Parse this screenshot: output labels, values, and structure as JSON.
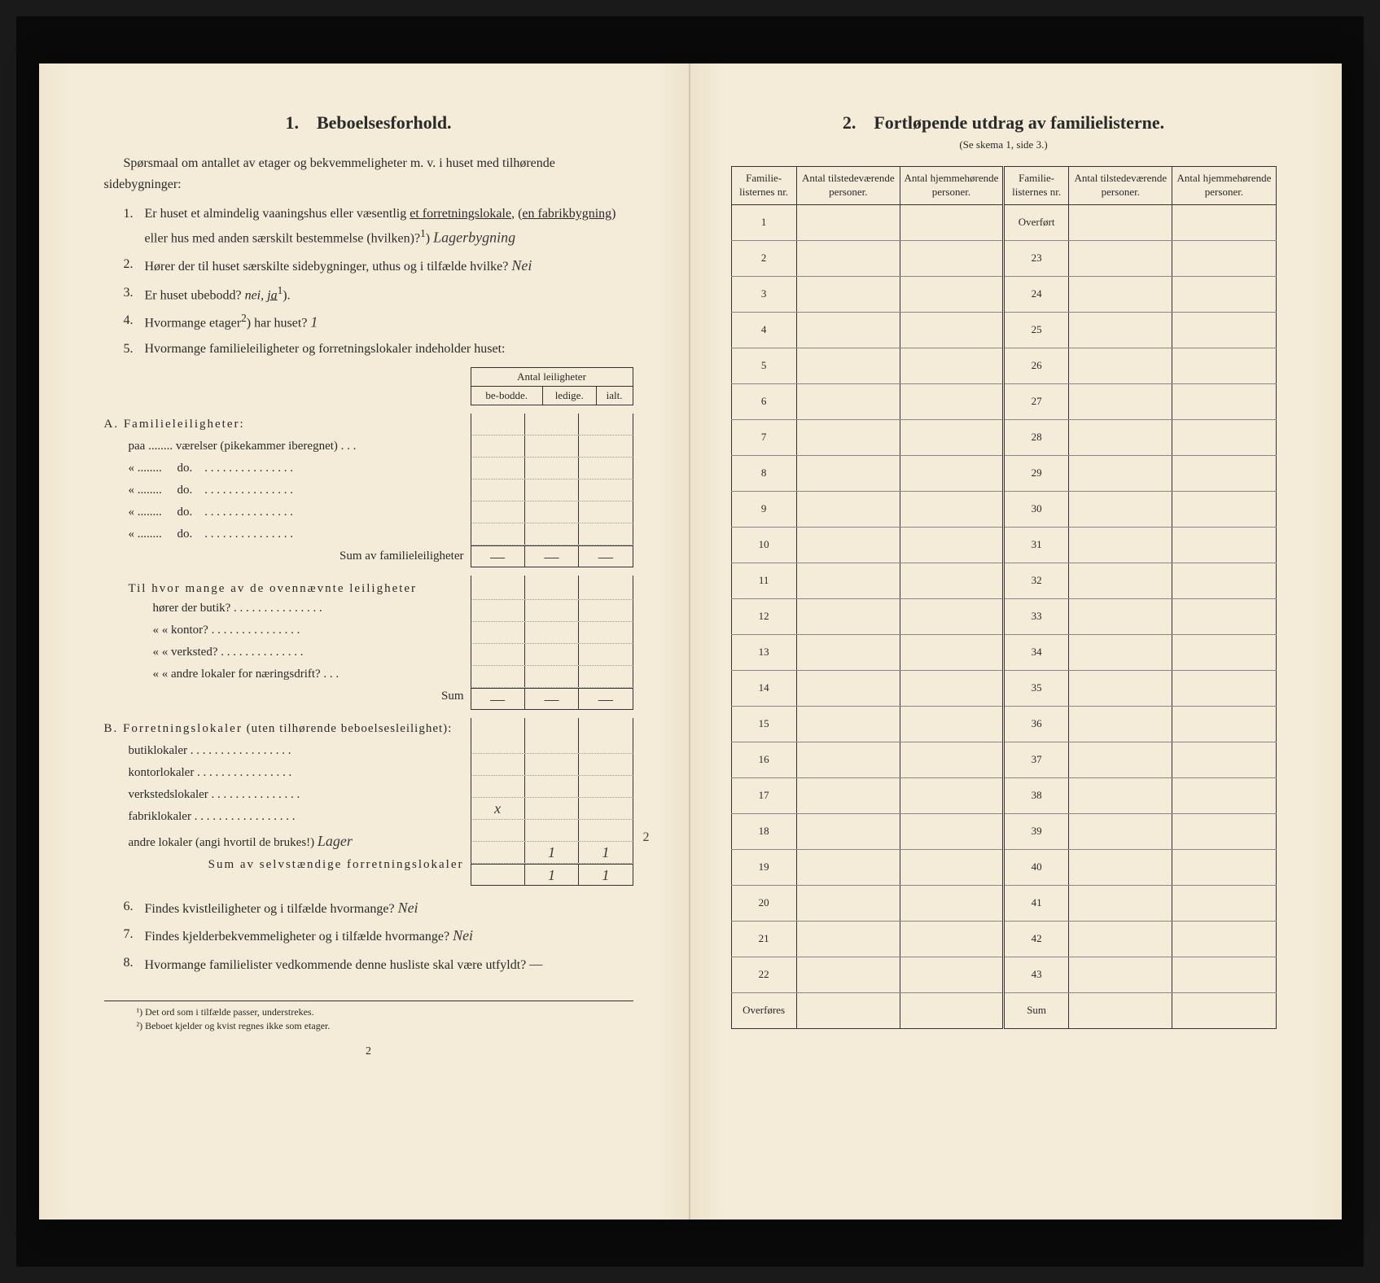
{
  "left_page": {
    "section_number": "1.",
    "section_title": "Beboelsesforhold.",
    "intro": "Spørsmaal om antallet av etager og bekvemmeligheter m. v. i huset med tilhørende sidebygninger:",
    "questions": {
      "q1_num": "1.",
      "q1_text_a": "Er huset et almindelig vaaningshus eller væsentlig ",
      "q1_text_b": "et forretningslokale",
      "q1_text_c": ", (",
      "q1_text_d": "en fabrikbygning",
      "q1_text_e": ") eller hus med anden særskilt bestemmelse (hvilken)?",
      "q1_sup": "1",
      "q1_answer": "Lagerbygning",
      "q2_num": "2.",
      "q2_text": "Hører der til huset særskilte sidebygninger, uthus og i tilfælde hvilke?",
      "q2_answer": "Nei",
      "q3_num": "3.",
      "q3_text_a": "Er huset ubebodd? ",
      "q3_nei": "nei",
      "q3_sep": ", ",
      "q3_ja": "ja",
      "q3_sup": "1",
      "q3_text_b": ").",
      "q4_num": "4.",
      "q4_text": "Hvormange etager",
      "q4_sup": "2",
      "q4_text_b": ") har huset?",
      "q4_answer": "1",
      "q5_num": "5.",
      "q5_text": "Hvormange familieleiligheter og forretningslokaler indeholder huset:"
    },
    "leilighet_table": {
      "header_span": "Antal leiligheter",
      "col1": "be-bodde.",
      "col2": "ledige.",
      "col3": "ialt."
    },
    "section_a": {
      "title": "A. Familieleiligheter:",
      "row1": "paa ........ værelser (pikekammer iberegnet) . . .",
      "row_do": "do.",
      "sum_label": "Sum av familieleiligheter",
      "sub_intro": "Til hvor mange av de ovennævnte leiligheter",
      "sub1": "hører der butik? . . . . . . . . . . . . . . .",
      "sub2": "«    « kontor? . . . . . . . . . . . . . . .",
      "sub3": "«    « verksted? . . . . . . . . . . . . . .",
      "sub4": "«    « andre lokaler for næringsdrift? . . .",
      "sub_sum": "Sum"
    },
    "section_b": {
      "title": "B. Forretningslokaler (uten tilhørende beboelsesleilighet):",
      "row1": "butiklokaler . . . . . . . . . . . . . . . . .",
      "row2": "kontorlokaler . . . . . . . . . . . . . . . .",
      "row3": "verkstedslokaler . . . . . . . . . . . . . . .",
      "row3_mark": "x",
      "row4": "fabriklokaler . . . . . . . . . . . . . . . . .",
      "row5_a": "andre lokaler (angi hvortil de brukes!) ",
      "row5_ans": "Lager",
      "row5_v2": "1",
      "row5_v3": "1",
      "margin_note": "2",
      "sum_label": "Sum av selvstændige forretningslokaler",
      "sum_v2": "1",
      "sum_v3": "1"
    },
    "q6_num": "6.",
    "q6_text": "Findes kvistleiligheter og i tilfælde hvormange?",
    "q6_answer": "Nei",
    "q7_num": "7.",
    "q7_text": "Findes kjelderbekvemmeligheter og i tilfælde hvormange?",
    "q7_answer": "Nei",
    "q8_num": "8.",
    "q8_text": "Hvormange familielister vedkommende denne husliste skal være utfyldt?",
    "q8_answer": "—",
    "footnotes": {
      "fn1": "¹) Det ord som i tilfælde passer, understrekes.",
      "fn2": "²) Beboet kjelder og kvist regnes ikke som etager."
    },
    "page_number": "2"
  },
  "right_page": {
    "section_number": "2.",
    "section_title": "Fortløpende utdrag av familielisterne.",
    "subtitle": "(Se skema 1, side 3.)",
    "headers": {
      "col1": "Familie-listernes nr.",
      "col2": "Antal tilstedeværende personer.",
      "col3": "Antal hjemmehørende personer.",
      "col4": "Familie-listernes nr.",
      "col5": "Antal tilstedeværende personer.",
      "col6": "Antal hjemmehørende personer."
    },
    "left_rows": [
      "1",
      "2",
      "3",
      "4",
      "5",
      "6",
      "7",
      "8",
      "9",
      "10",
      "11",
      "12",
      "13",
      "14",
      "15",
      "16",
      "17",
      "18",
      "19",
      "20",
      "21",
      "22"
    ],
    "left_last": "Overføres",
    "right_first": "Overført",
    "right_rows": [
      "23",
      "24",
      "25",
      "26",
      "27",
      "28",
      "29",
      "30",
      "31",
      "32",
      "33",
      "34",
      "35",
      "36",
      "37",
      "38",
      "39",
      "40",
      "41",
      "42",
      "43"
    ],
    "right_last": "Sum"
  }
}
